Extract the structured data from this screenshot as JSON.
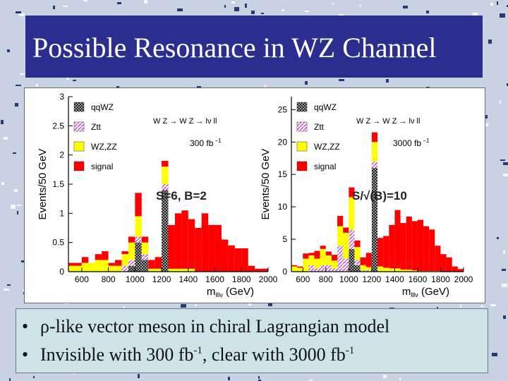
{
  "slide": {
    "title": "Possible Resonance in WZ Channel",
    "bullets": [
      {
        "pre": "ρ-like vector meson in chiral Lagrangian model"
      },
      {
        "pre": "Invisible with 300 fb",
        "sup1": "-1",
        "mid": ", clear with 3000 fb",
        "sup2": "-1"
      }
    ],
    "colors": {
      "title_bg": "#2b2d8f",
      "qqWZ": "#555555",
      "Ztt": "#cc66cc",
      "WZZZ": "#ffff00",
      "signal": "#ff0000"
    }
  },
  "chart_data": [
    {
      "type": "bar",
      "stacked": true,
      "ylabel": "Events/50 GeV",
      "xlabel_main": "m",
      "xlabel_sub": "lllν",
      "xlabel_unit": "(GeV)",
      "xlim": [
        500,
        2000
      ],
      "ylim": [
        0,
        3
      ],
      "xticks": [
        600,
        800,
        1000,
        1200,
        1400,
        1600,
        1800,
        2000
      ],
      "yticks": [
        "0",
        "0.5",
        "1",
        "1.5",
        "2",
        "2.5",
        "3"
      ],
      "ytick_values": [
        0,
        0.5,
        1,
        1.5,
        2,
        2.5,
        3
      ],
      "legend": [
        {
          "name": "qqWZ",
          "key": "qqWZ"
        },
        {
          "name": "Ztt",
          "key": "Ztt"
        },
        {
          "name": "WZ,ZZ",
          "key": "WZZZ"
        },
        {
          "name": "signal",
          "key": "signal"
        }
      ],
      "process_label": "W Z → W Z → lν ll",
      "lumi_label": "300 fb",
      "lumi_sup": "−1",
      "annotation": "S=6, B=2",
      "bins_x": [
        525,
        575,
        625,
        675,
        725,
        775,
        825,
        875,
        925,
        975,
        1025,
        1075,
        1125,
        1175,
        1225,
        1275,
        1325,
        1375,
        1425,
        1475,
        1525,
        1575,
        1625,
        1675,
        1725,
        1775,
        1825,
        1875,
        1925,
        1975
      ],
      "series": [
        {
          "key": "qqWZ",
          "values": [
            0,
            0,
            0,
            0,
            0,
            0,
            0,
            0,
            0,
            0.1,
            0.5,
            0.2,
            0,
            0,
            1.4,
            0,
            0,
            0,
            0,
            0,
            0,
            0,
            0,
            0,
            0,
            0,
            0,
            0,
            0,
            0
          ]
        },
        {
          "key": "Ztt",
          "values": [
            0,
            0,
            0,
            0,
            0,
            0,
            0,
            0,
            0.1,
            0.1,
            0.1,
            0.1,
            0,
            0,
            0.1,
            0,
            0,
            0,
            0,
            0,
            0,
            0,
            0,
            0,
            0,
            0,
            0,
            0,
            0,
            0
          ]
        },
        {
          "key": "WZZZ",
          "values": [
            0.1,
            0.1,
            0.15,
            0.15,
            0.2,
            0.2,
            0.1,
            0.1,
            0.2,
            0.3,
            0.35,
            0.2,
            0.05,
            0.05,
            0.3,
            0.05,
            0.05,
            0.05,
            0.05,
            0,
            0,
            0,
            0,
            0,
            0,
            0,
            0,
            0,
            0,
            0
          ]
        },
        {
          "key": "signal",
          "values": [
            0.05,
            0.05,
            0.1,
            0.0,
            0.1,
            0.15,
            0.05,
            0.1,
            0.05,
            0.1,
            0.4,
            0.1,
            0.15,
            0.2,
            0.1,
            0.75,
            0.95,
            1.0,
            0.85,
            0.75,
            1.0,
            0.8,
            0.8,
            0.55,
            0.45,
            0.4,
            0.4,
            0.1,
            0.05,
            0.05
          ]
        }
      ]
    },
    {
      "type": "bar",
      "stacked": true,
      "ylabel": "Events/50 GeV",
      "xlabel_main": "m",
      "xlabel_sub": "lllν",
      "xlabel_unit": "(GeV)",
      "xlim": [
        500,
        2000
      ],
      "ylim": [
        0,
        27
      ],
      "xticks": [
        600,
        800,
        1000,
        1200,
        1400,
        1600,
        1800,
        2000
      ],
      "yticks": [
        "0",
        "5",
        "10",
        "15",
        "20",
        "25"
      ],
      "ytick_values": [
        0,
        5,
        10,
        15,
        20,
        25
      ],
      "legend": [
        {
          "name": "qqWZ",
          "key": "qqWZ"
        },
        {
          "name": "Ztt",
          "key": "Ztt"
        },
        {
          "name": "WZ,ZZ",
          "key": "WZZZ"
        },
        {
          "name": "signal",
          "key": "signal"
        }
      ],
      "process_label": "W Z → W Z → lν ll",
      "lumi_label": "3000 fb",
      "lumi_sup": "−1",
      "annotation": "S/√(B)=10",
      "bins_x": [
        525,
        575,
        625,
        675,
        725,
        775,
        825,
        875,
        925,
        975,
        1025,
        1075,
        1125,
        1175,
        1225,
        1275,
        1325,
        1375,
        1425,
        1475,
        1525,
        1575,
        1625,
        1675,
        1725,
        1775,
        1825,
        1875,
        1925,
        1975
      ],
      "series": [
        {
          "key": "qqWZ",
          "values": [
            0,
            0,
            0,
            0,
            0,
            0,
            0,
            0,
            0,
            0,
            3.5,
            1,
            0,
            0,
            16,
            0,
            0,
            0,
            0,
            0,
            0,
            0,
            0,
            0,
            0,
            0,
            0,
            0,
            0,
            0
          ]
        },
        {
          "key": "Ztt",
          "values": [
            0,
            0,
            0,
            1,
            0.5,
            1,
            1,
            0.5,
            4,
            2,
            3,
            0.8,
            0.2,
            0.2,
            1,
            0,
            0,
            0,
            0,
            0,
            0,
            0,
            0,
            0,
            0,
            0,
            0,
            0,
            0,
            0
          ]
        },
        {
          "key": "WZZZ",
          "values": [
            0.8,
            0.6,
            2,
            1.5,
            1.5,
            2.5,
            1.5,
            1.2,
            3,
            4,
            5,
            2,
            0.8,
            0.5,
            3,
            0.8,
            0.6,
            0.5,
            0.5,
            0.3,
            0.3,
            0.2,
            0.1,
            0.1,
            0.1,
            0.1,
            0,
            0,
            0,
            0
          ]
        },
        {
          "key": "signal",
          "values": [
            0.2,
            0.2,
            0.8,
            0.4,
            1.2,
            0.5,
            0.6,
            0.9,
            1.6,
            0.8,
            1.5,
            1,
            1.2,
            2.2,
            1.5,
            4.4,
            4.9,
            6.7,
            9.0,
            7.2,
            8.2,
            7.6,
            7.9,
            6.9,
            6.4,
            3.9,
            2.7,
            2.2,
            0.8,
            0.4
          ]
        }
      ]
    }
  ]
}
